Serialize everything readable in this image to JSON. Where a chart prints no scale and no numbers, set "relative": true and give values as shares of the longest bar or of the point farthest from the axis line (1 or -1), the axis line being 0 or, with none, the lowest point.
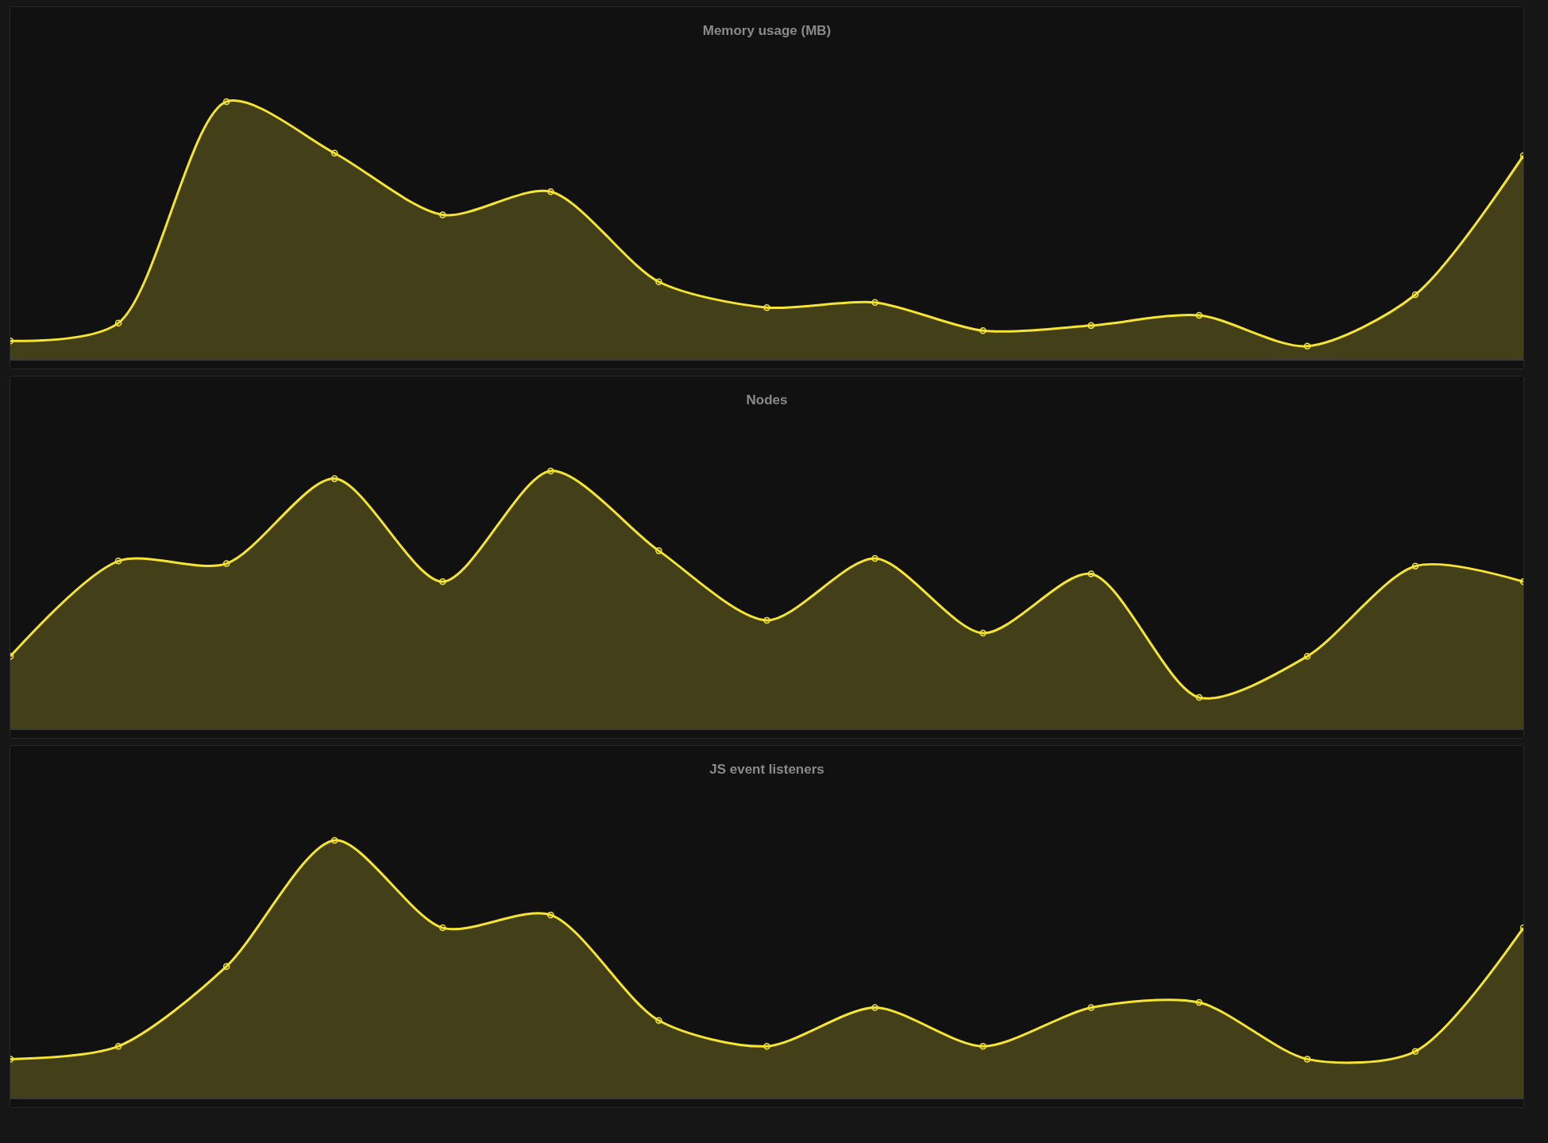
{
  "chart_data": [
    {
      "type": "area",
      "title": "Memory usage (MB)",
      "relative": true,
      "categories": [
        null,
        null,
        null,
        null,
        null,
        null,
        null,
        null,
        null,
        null,
        null,
        null,
        null,
        null,
        null
      ],
      "marker": "circle",
      "legend": false,
      "series": [
        {
          "color": "#f5e431",
          "values": [
            0.07,
            0.14,
            1,
            0.8,
            0.56,
            0.65,
            0.3,
            0.2,
            0.22,
            0.11,
            0.13,
            0.17,
            0.05,
            0.25,
            0.79
          ]
        }
      ]
    },
    {
      "type": "area",
      "title": "Nodes",
      "relative": true,
      "categories": [
        null,
        null,
        null,
        null,
        null,
        null,
        null,
        null,
        null,
        null,
        null,
        null,
        null,
        null,
        null
      ],
      "marker": "circle",
      "legend": false,
      "series": [
        {
          "color": "#f5e431",
          "values": [
            0.28,
            0.65,
            0.64,
            0.97,
            0.57,
            1,
            0.69,
            0.42,
            0.66,
            0.37,
            0.6,
            0.12,
            0.28,
            0.63,
            0.57
          ]
        }
      ]
    },
    {
      "type": "area",
      "title": "JS event listeners",
      "relative": true,
      "categories": [
        null,
        null,
        null,
        null,
        null,
        null,
        null,
        null,
        null,
        null,
        null,
        null,
        null,
        null,
        null
      ],
      "marker": "circle",
      "legend": false,
      "series": [
        {
          "color": "#f5e431",
          "values": [
            0.15,
            0.2,
            0.51,
            1,
            0.66,
            0.71,
            0.3,
            0.2,
            0.35,
            0.2,
            0.35,
            0.37,
            0.15,
            0.18,
            0.66
          ]
        }
      ]
    }
  ]
}
